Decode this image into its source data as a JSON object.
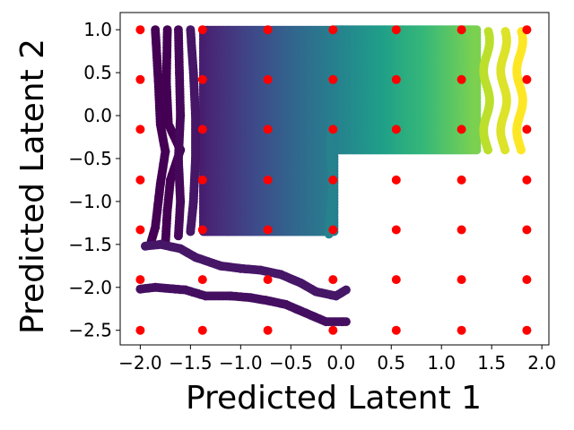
{
  "chart_data": {
    "type": "scatter",
    "title": "",
    "xlabel": "Predicted Latent 1",
    "ylabel": "Predicted Latent 2",
    "xlim": [
      -2.2,
      2.07
    ],
    "ylim": [
      -2.67,
      1.2
    ],
    "xticks": [
      -2.0,
      -1.5,
      -1.0,
      -0.5,
      0.0,
      0.5,
      1.0,
      1.5,
      2.0
    ],
    "xtick_labels": [
      "−2.0",
      "−1.5",
      "−1.0",
      "−0.5",
      "0.0",
      "0.5",
      "1.0",
      "1.5",
      "2.0"
    ],
    "yticks": [
      1.0,
      0.5,
      0.0,
      -0.5,
      -1.0,
      -1.5,
      -2.0,
      -2.5
    ],
    "ytick_labels": [
      "1.0",
      "0.5",
      "0.0",
      "−0.5",
      "−1.0",
      "−1.5",
      "−2.0",
      "−2.5"
    ],
    "grid": false,
    "colormap": "viridis",
    "grid_points": {
      "color": "#ff0000",
      "x": [
        -2.0,
        -1.38,
        -0.73,
        -0.08,
        0.55,
        1.2,
        1.85
      ],
      "y": [
        1.0,
        0.42,
        -0.16,
        -0.75,
        -1.33,
        -1.91,
        -2.5
      ]
    },
    "predicted_curves": [
      {
        "c": 0.0,
        "points": [
          [
            -1.85,
            1.0
          ],
          [
            -1.82,
            0.4
          ],
          [
            -1.8,
            -0.1
          ],
          [
            -1.75,
            -0.42
          ],
          [
            -1.8,
            -0.8
          ],
          [
            -1.85,
            -1.3
          ],
          [
            -1.9,
            -1.5
          ]
        ]
      },
      {
        "c": 0.0,
        "points": [
          [
            -1.73,
            1.0
          ],
          [
            -1.74,
            0.4
          ],
          [
            -1.72,
            -0.1
          ],
          [
            -1.6,
            -0.4
          ],
          [
            -1.7,
            -0.75
          ],
          [
            -1.73,
            -1.1
          ],
          [
            -1.75,
            -1.5
          ]
        ]
      },
      {
        "c": 0.02,
        "points": [
          [
            -1.62,
            1.0
          ],
          [
            -1.61,
            0.5
          ],
          [
            -1.6,
            0.0
          ],
          [
            -1.62,
            -0.5
          ],
          [
            -1.6,
            -1.0
          ],
          [
            -1.62,
            -1.4
          ]
        ]
      },
      {
        "c": 0.06,
        "points": [
          [
            -1.5,
            1.0
          ],
          [
            -1.47,
            0.5
          ],
          [
            -1.45,
            0.0
          ],
          [
            -1.45,
            -0.5
          ],
          [
            -1.47,
            -1.0
          ],
          [
            -1.5,
            -1.35
          ]
        ]
      },
      {
        "c": 0.04,
        "points": [
          [
            -2.0,
            -2.02
          ],
          [
            -1.85,
            -2.0
          ],
          [
            -1.55,
            -2.03
          ],
          [
            -1.35,
            -2.1
          ],
          [
            -1.1,
            -2.1
          ],
          [
            -0.9,
            -2.12
          ],
          [
            -0.75,
            -2.15
          ],
          [
            -0.55,
            -2.2
          ],
          [
            -0.35,
            -2.3
          ],
          [
            -0.15,
            -2.4
          ],
          [
            0.05,
            -2.4
          ]
        ]
      },
      {
        "c": 0.06,
        "points": [
          [
            -1.95,
            -1.52
          ],
          [
            -1.8,
            -1.5
          ],
          [
            -1.6,
            -1.55
          ],
          [
            -1.45,
            -1.65
          ],
          [
            -1.2,
            -1.75
          ],
          [
            -1.0,
            -1.78
          ],
          [
            -0.8,
            -1.8
          ],
          [
            -0.6,
            -1.85
          ],
          [
            -0.4,
            -1.95
          ],
          [
            -0.25,
            -2.05
          ],
          [
            -0.05,
            -2.1
          ],
          [
            0.05,
            -2.03
          ]
        ]
      },
      {
        "c": 0.45,
        "points": [
          [
            -0.1,
            -0.2
          ],
          [
            -0.1,
            -0.5
          ],
          [
            -0.08,
            -0.8
          ],
          [
            -0.1,
            -1.1
          ],
          [
            -0.12,
            -1.38
          ]
        ]
      }
    ],
    "predicted_region": {
      "x_range": [
        -1.37,
        1.35
      ],
      "y_top": 1.0,
      "y_bottom_left": -1.35,
      "y_bottom_right": -0.4,
      "step_x": -0.05
    },
    "predicted_stripes_right": [
      {
        "c": 0.9,
        "x": 1.45,
        "y_range": [
          -0.4,
          1.0
        ]
      },
      {
        "c": 0.95,
        "x": 1.62,
        "y_range": [
          -0.4,
          1.0
        ]
      },
      {
        "c": 1.0,
        "x": 1.78,
        "y_range": [
          -0.4,
          1.0
        ]
      }
    ]
  }
}
